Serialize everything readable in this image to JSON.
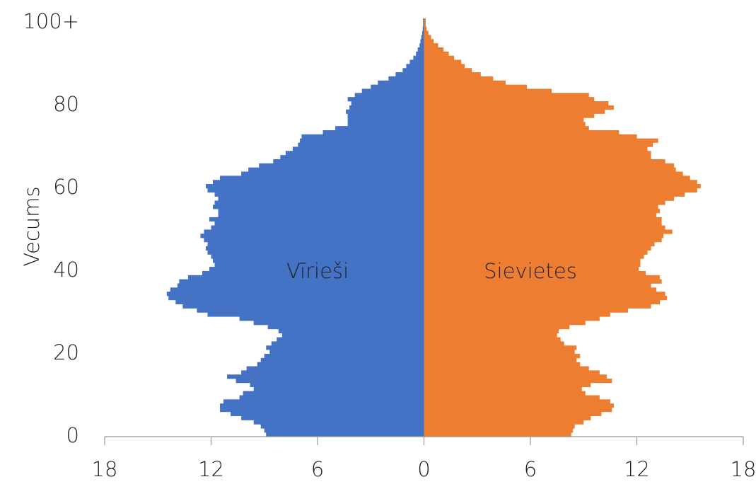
{
  "chart_data": {
    "type": "pyramid",
    "y_label": "Vecums",
    "y": [
      0,
      1,
      2,
      3,
      4,
      5,
      6,
      7,
      8,
      9,
      10,
      11,
      12,
      13,
      14,
      15,
      16,
      17,
      18,
      19,
      20,
      21,
      22,
      23,
      24,
      25,
      26,
      27,
      28,
      29,
      30,
      31,
      32,
      33,
      34,
      35,
      36,
      37,
      38,
      39,
      40,
      41,
      42,
      43,
      44,
      45,
      46,
      47,
      48,
      49,
      50,
      51,
      52,
      53,
      54,
      55,
      56,
      57,
      58,
      59,
      60,
      61,
      62,
      63,
      64,
      65,
      66,
      67,
      68,
      69,
      70,
      71,
      72,
      73,
      74,
      75,
      76,
      77,
      78,
      79,
      80,
      81,
      82,
      83,
      84,
      85,
      86,
      87,
      88,
      89,
      90,
      91,
      92,
      93,
      94,
      95,
      96,
      97,
      98,
      99,
      100
    ],
    "series": [
      {
        "name": "Vīrieši",
        "side": "left",
        "color": "#4472c4",
        "values": [
          8.9,
          9.0,
          9.2,
          9.6,
          10.3,
          10.9,
          11.5,
          11.5,
          11.3,
          10.4,
          10.2,
          9.6,
          9.8,
          10.6,
          11.1,
          10.3,
          10.0,
          9.4,
          9.2,
          9.0,
          8.7,
          8.9,
          8.6,
          8.3,
          8.0,
          8.2,
          8.8,
          9.6,
          10.4,
          12.2,
          12.8,
          13.6,
          14.0,
          14.4,
          14.5,
          14.3,
          13.9,
          13.8,
          13.3,
          12.5,
          12.1,
          11.8,
          11.9,
          12.0,
          12.2,
          12.3,
          12.2,
          12.4,
          12.6,
          12.4,
          12.0,
          11.8,
          12.1,
          11.6,
          11.6,
          11.9,
          11.8,
          11.6,
          11.8,
          12.2,
          12.3,
          11.9,
          11.5,
          10.3,
          9.9,
          9.3,
          8.5,
          8.1,
          7.8,
          7.4,
          7.1,
          7.0,
          6.9,
          5.7,
          5.0,
          4.3,
          4.3,
          4.3,
          4.4,
          4.2,
          4.1,
          4.3,
          3.9,
          3.5,
          3.0,
          2.6,
          2.0,
          1.6,
          1.2,
          1.0,
          0.8,
          0.6,
          0.45,
          0.35,
          0.25,
          0.2,
          0.15,
          0.1,
          0.07,
          0.05,
          0.05
        ]
      },
      {
        "name": "Sievietes",
        "side": "right",
        "color": "#ed7d31",
        "values": [
          8.3,
          8.4,
          8.5,
          9.0,
          9.4,
          10.0,
          10.6,
          10.7,
          10.5,
          9.9,
          9.1,
          8.9,
          9.4,
          10.6,
          10.3,
          9.9,
          9.3,
          8.8,
          8.6,
          8.8,
          8.5,
          8.6,
          7.9,
          7.7,
          7.5,
          7.6,
          8.2,
          9.1,
          9.9,
          10.5,
          11.5,
          12.8,
          13.3,
          13.7,
          13.6,
          13.1,
          12.8,
          13.4,
          13.3,
          12.5,
          12.1,
          12.2,
          12.2,
          12.4,
          12.6,
          12.8,
          13.0,
          13.4,
          13.5,
          14.0,
          13.6,
          13.4,
          13.4,
          13.1,
          13.3,
          13.2,
          13.6,
          14.1,
          14.7,
          15.4,
          15.6,
          15.4,
          15.0,
          14.6,
          14.2,
          14.1,
          13.6,
          12.8,
          12.8,
          12.6,
          12.9,
          13.2,
          12.0,
          11.0,
          9.3,
          9.1,
          9.0,
          9.6,
          10.2,
          10.7,
          10.4,
          9.6,
          9.3,
          7.2,
          5.8,
          4.6,
          3.9,
          3.2,
          2.7,
          2.3,
          2.1,
          1.7,
          1.4,
          1.1,
          0.8,
          0.55,
          0.4,
          0.25,
          0.15,
          0.1,
          0.1
        ]
      }
    ],
    "xlim": [
      -18,
      18
    ],
    "xticks": [
      {
        "value": -18,
        "label": "18"
      },
      {
        "value": -12,
        "label": "12"
      },
      {
        "value": -6,
        "label": "6"
      },
      0,
      6,
      12,
      18
    ],
    "ylim": [
      0,
      101
    ],
    "yticks": [
      0,
      20,
      40,
      60,
      80,
      {
        "value": 100,
        "label": "100+"
      }
    ]
  }
}
